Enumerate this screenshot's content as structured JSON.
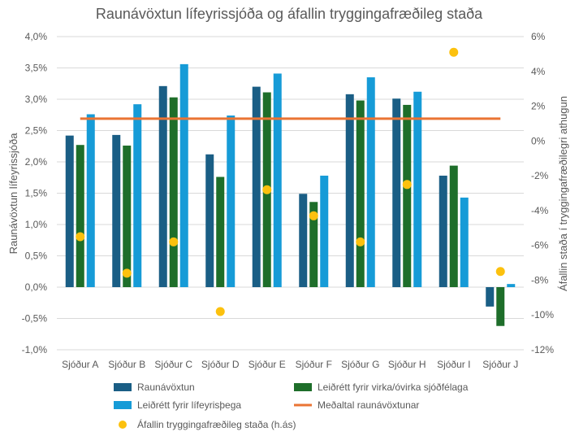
{
  "chart_data": {
    "type": "bar",
    "title": "Raunávöxtun lífeyrissjóða og áfallin tryggingafræðileg staða",
    "ylabel": "Raunávöxtun lífeyrissjóða",
    "y2label": "Áfallin staða í tryggingafræðilegri athugun",
    "ylim": [
      -1.0,
      4.0
    ],
    "y2lim": [
      -12,
      6
    ],
    "yticks": [
      "-1,0%",
      "-0,5%",
      "0,0%",
      "0,5%",
      "1,0%",
      "1,5%",
      "2,0%",
      "2,5%",
      "3,0%",
      "3,5%",
      "4,0%"
    ],
    "y2ticks": [
      "-12%",
      "-10%",
      "-8%",
      "-6%",
      "-4%",
      "-2%",
      "0%",
      "2%",
      "4%",
      "6%"
    ],
    "categories": [
      "Sjóður A",
      "Sjóður B",
      "Sjóður C",
      "Sjóður D",
      "Sjóður E",
      "Sjóður F",
      "Sjóður G",
      "Sjóður H",
      "Sjóður I",
      "Sjóður J"
    ],
    "series": [
      {
        "name": "Raunávöxtun",
        "color": "#1a5e85",
        "type": "bar",
        "values": [
          2.42,
          2.43,
          3.21,
          2.12,
          3.2,
          1.49,
          3.08,
          3.01,
          1.78,
          -0.31
        ]
      },
      {
        "name": "Leiðrétt fyrir virka/óvirka sjóðfélaga",
        "color": "#1e6e2a",
        "type": "bar",
        "values": [
          2.27,
          2.26,
          3.03,
          1.76,
          3.11,
          1.36,
          2.98,
          2.91,
          1.94,
          -0.62
        ]
      },
      {
        "name": "Leiðrétt fyrir lífeyrisþega",
        "color": "#169bd7",
        "type": "bar",
        "values": [
          2.76,
          2.92,
          3.56,
          2.74,
          3.41,
          1.78,
          3.35,
          3.12,
          1.43,
          0.05
        ]
      },
      {
        "name": "Meðaltal raunávöxtunar",
        "color": "#ea7434",
        "type": "line",
        "value": 2.69
      },
      {
        "name": "Áfallin tryggingafræðileg staða (h.ás)",
        "color": "#fcc10e",
        "type": "scatter",
        "axis": "right",
        "values": [
          -5.5,
          -7.6,
          -5.8,
          -9.8,
          -2.8,
          -4.3,
          -5.8,
          -2.5,
          5.1,
          -7.5
        ]
      }
    ],
    "grid": true,
    "legend": "bottom"
  }
}
